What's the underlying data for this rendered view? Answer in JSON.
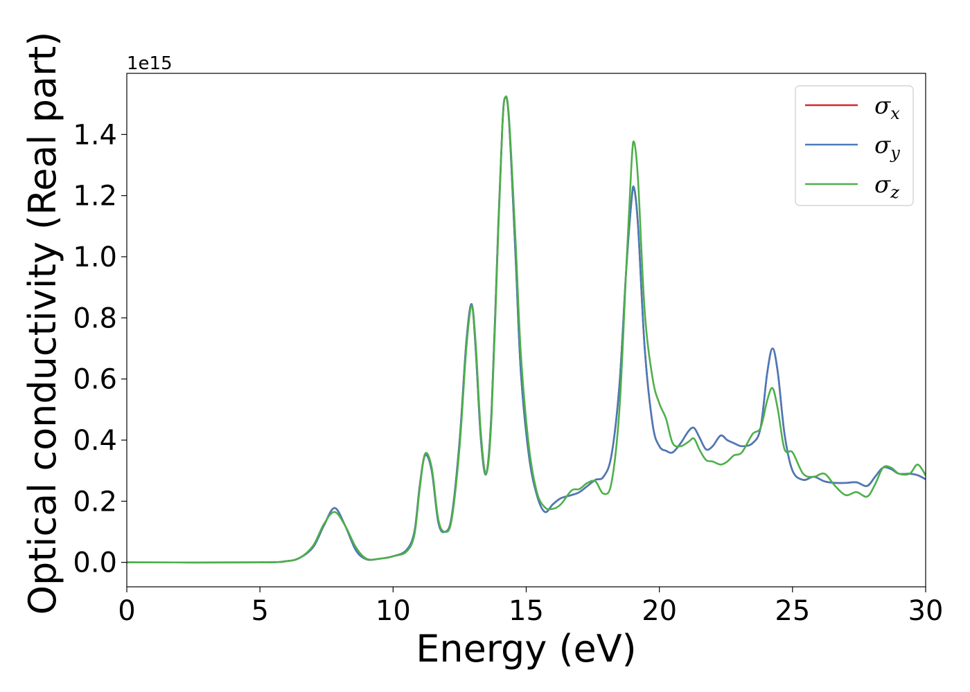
{
  "chart_data": {
    "type": "line",
    "xlabel": "Energy (eV)",
    "ylabel": "Optical conductivity (Real part)",
    "y_offset_label": "1e15",
    "xlim": [
      0,
      30
    ],
    "ylim": [
      -0.08,
      1.6
    ],
    "x_ticks": [
      0,
      5,
      10,
      15,
      20,
      25,
      30
    ],
    "x_tick_labels": [
      "0",
      "5",
      "10",
      "15",
      "20",
      "25",
      "30"
    ],
    "y_ticks": [
      0.0,
      0.2,
      0.4,
      0.6,
      0.8,
      1.0,
      1.2,
      1.4
    ],
    "y_tick_labels": [
      "0.0",
      "0.2",
      "0.4",
      "0.6",
      "0.8",
      "1.0",
      "1.2",
      "1.4"
    ],
    "grid": false,
    "legend_position": "top-right",
    "series": [
      {
        "name": "σx",
        "sym": "σ",
        "sub": "x",
        "color": "#d62728",
        "x": [
          0,
          5,
          6,
          6.5,
          7,
          7.4,
          7.8,
          8.2,
          8.6,
          9.0,
          9.5,
          10.0,
          10.5,
          10.8,
          11.0,
          11.2,
          11.45,
          11.7,
          11.95,
          12.2,
          12.5,
          12.75,
          12.95,
          13.1,
          13.3,
          13.5,
          13.7,
          13.95,
          14.1,
          14.2,
          14.35,
          14.6,
          14.8,
          15.1,
          15.4,
          15.7,
          16.0,
          16.3,
          16.7,
          17.0,
          17.3,
          17.6,
          17.9,
          18.2,
          18.5,
          18.75,
          18.95,
          19.05,
          19.2,
          19.45,
          19.75,
          20.0,
          20.25,
          20.5,
          20.8,
          21.1,
          21.3,
          21.5,
          21.75,
          22.0,
          22.3,
          22.55,
          22.8,
          23.1,
          23.5,
          23.8,
          24.05,
          24.25,
          24.45,
          24.7,
          25.0,
          25.4,
          25.8,
          26.2,
          26.6,
          27.0,
          27.4,
          27.8,
          28.1,
          28.4,
          28.7,
          29.0,
          29.4,
          29.7,
          30.0
        ],
        "values": [
          0.0,
          0.0,
          0.004,
          0.015,
          0.05,
          0.12,
          0.178,
          0.12,
          0.04,
          0.01,
          0.012,
          0.02,
          0.04,
          0.1,
          0.25,
          0.35,
          0.3,
          0.13,
          0.1,
          0.15,
          0.4,
          0.72,
          0.845,
          0.7,
          0.4,
          0.29,
          0.5,
          1.1,
          1.42,
          1.52,
          1.45,
          1.0,
          0.62,
          0.35,
          0.22,
          0.165,
          0.19,
          0.21,
          0.22,
          0.23,
          0.25,
          0.27,
          0.28,
          0.35,
          0.58,
          0.95,
          1.18,
          1.225,
          1.1,
          0.7,
          0.45,
          0.38,
          0.365,
          0.36,
          0.39,
          0.43,
          0.44,
          0.41,
          0.37,
          0.38,
          0.415,
          0.4,
          0.39,
          0.38,
          0.39,
          0.44,
          0.62,
          0.7,
          0.62,
          0.42,
          0.3,
          0.27,
          0.28,
          0.265,
          0.26,
          0.26,
          0.262,
          0.25,
          0.28,
          0.31,
          0.305,
          0.29,
          0.29,
          0.285,
          0.272
        ]
      },
      {
        "name": "σy",
        "sym": "σ",
        "sub": "y",
        "color": "#4a7ab8",
        "x": [
          0,
          5,
          6,
          6.5,
          7,
          7.4,
          7.8,
          8.2,
          8.6,
          9.0,
          9.5,
          10.0,
          10.5,
          10.8,
          11.0,
          11.2,
          11.45,
          11.7,
          11.95,
          12.2,
          12.5,
          12.75,
          12.95,
          13.1,
          13.3,
          13.5,
          13.7,
          13.95,
          14.1,
          14.2,
          14.35,
          14.6,
          14.8,
          15.1,
          15.4,
          15.7,
          16.0,
          16.3,
          16.7,
          17.0,
          17.3,
          17.6,
          17.9,
          18.2,
          18.5,
          18.75,
          18.95,
          19.05,
          19.2,
          19.45,
          19.75,
          20.0,
          20.25,
          20.5,
          20.8,
          21.1,
          21.3,
          21.5,
          21.75,
          22.0,
          22.3,
          22.55,
          22.8,
          23.1,
          23.5,
          23.8,
          24.05,
          24.25,
          24.45,
          24.7,
          25.0,
          25.4,
          25.8,
          26.2,
          26.6,
          27.0,
          27.4,
          27.8,
          28.1,
          28.4,
          28.7,
          29.0,
          29.4,
          29.7,
          30.0
        ],
        "values": [
          0.0,
          0.0,
          0.004,
          0.015,
          0.05,
          0.12,
          0.178,
          0.12,
          0.04,
          0.01,
          0.012,
          0.02,
          0.04,
          0.1,
          0.25,
          0.35,
          0.3,
          0.13,
          0.1,
          0.15,
          0.4,
          0.72,
          0.845,
          0.7,
          0.4,
          0.29,
          0.5,
          1.1,
          1.42,
          1.52,
          1.45,
          1.0,
          0.62,
          0.35,
          0.22,
          0.165,
          0.19,
          0.21,
          0.22,
          0.23,
          0.25,
          0.27,
          0.28,
          0.35,
          0.58,
          0.95,
          1.18,
          1.225,
          1.1,
          0.7,
          0.45,
          0.38,
          0.365,
          0.36,
          0.39,
          0.43,
          0.44,
          0.41,
          0.37,
          0.38,
          0.415,
          0.4,
          0.39,
          0.38,
          0.39,
          0.44,
          0.62,
          0.7,
          0.62,
          0.42,
          0.3,
          0.27,
          0.28,
          0.265,
          0.26,
          0.26,
          0.262,
          0.25,
          0.28,
          0.31,
          0.305,
          0.29,
          0.29,
          0.285,
          0.272
        ]
      },
      {
        "name": "σz",
        "sym": "σ",
        "sub": "z",
        "color": "#4daf4a",
        "x": [
          0,
          5,
          6,
          6.5,
          7,
          7.4,
          7.8,
          8.2,
          8.6,
          9.0,
          9.5,
          10.0,
          10.5,
          10.8,
          11.0,
          11.2,
          11.45,
          11.7,
          11.95,
          12.2,
          12.5,
          12.75,
          12.95,
          13.1,
          13.3,
          13.5,
          13.7,
          13.95,
          14.1,
          14.2,
          14.35,
          14.6,
          14.8,
          15.1,
          15.4,
          15.7,
          16.0,
          16.3,
          16.7,
          17.0,
          17.3,
          17.6,
          17.9,
          18.2,
          18.5,
          18.75,
          18.95,
          19.05,
          19.2,
          19.45,
          19.75,
          20.0,
          20.25,
          20.5,
          20.8,
          21.1,
          21.3,
          21.5,
          21.75,
          22.0,
          22.3,
          22.55,
          22.8,
          23.1,
          23.5,
          23.8,
          24.05,
          24.25,
          24.45,
          24.7,
          25.0,
          25.4,
          25.8,
          26.2,
          26.6,
          27.0,
          27.4,
          27.8,
          28.1,
          28.4,
          28.7,
          29.0,
          29.4,
          29.7,
          30.0
        ],
        "values": [
          0.0,
          0.0,
          0.004,
          0.015,
          0.055,
          0.125,
          0.165,
          0.12,
          0.05,
          0.012,
          0.012,
          0.02,
          0.035,
          0.09,
          0.24,
          0.355,
          0.31,
          0.14,
          0.1,
          0.14,
          0.38,
          0.7,
          0.84,
          0.72,
          0.42,
          0.29,
          0.48,
          1.08,
          1.42,
          1.52,
          1.46,
          1.05,
          0.68,
          0.38,
          0.23,
          0.18,
          0.175,
          0.19,
          0.235,
          0.24,
          0.26,
          0.265,
          0.225,
          0.26,
          0.5,
          0.95,
          1.3,
          1.375,
          1.25,
          0.82,
          0.6,
          0.52,
          0.47,
          0.39,
          0.38,
          0.395,
          0.405,
          0.37,
          0.335,
          0.33,
          0.32,
          0.33,
          0.35,
          0.36,
          0.42,
          0.44,
          0.53,
          0.57,
          0.5,
          0.37,
          0.36,
          0.29,
          0.28,
          0.29,
          0.25,
          0.22,
          0.23,
          0.215,
          0.255,
          0.31,
          0.31,
          0.29,
          0.29,
          0.32,
          0.285
        ]
      }
    ]
  }
}
